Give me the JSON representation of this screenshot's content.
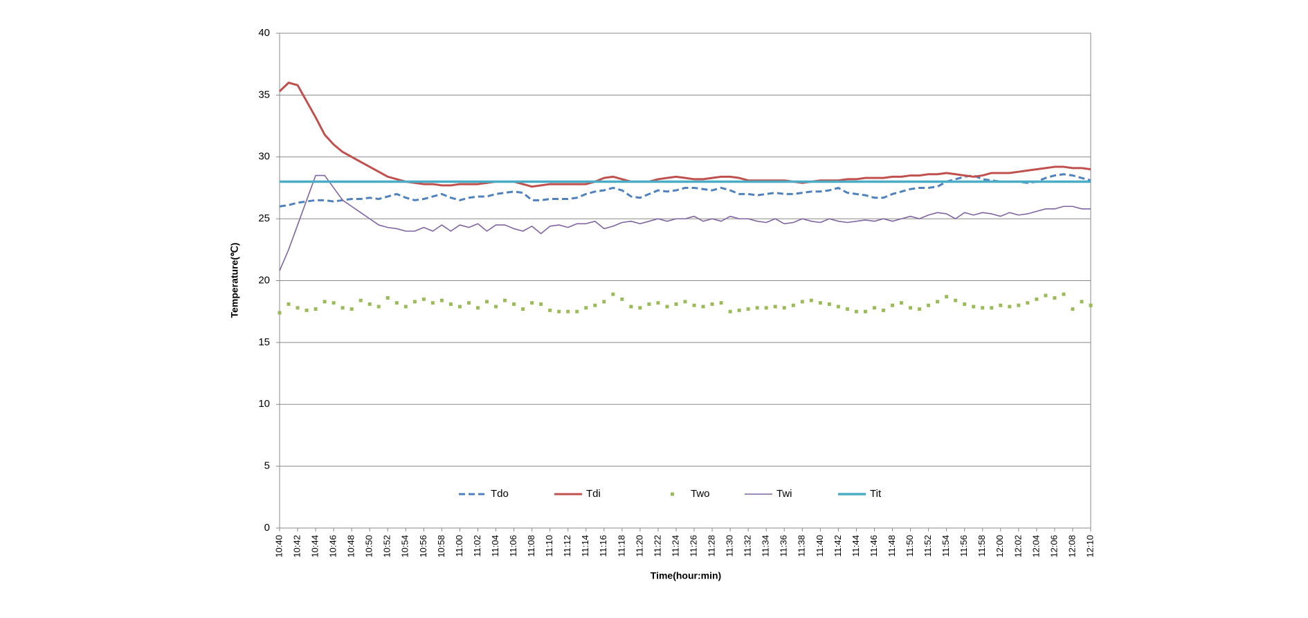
{
  "chart_data": {
    "type": "line",
    "xlabel": "Time(hour:min)",
    "ylabel": "Temperature(℃)",
    "categories": [
      "10:40",
      null,
      "10:42",
      null,
      "10:44",
      null,
      "10:46",
      null,
      "10:48",
      null,
      "10:50",
      null,
      "10:52",
      null,
      "10:54",
      null,
      "10:56",
      null,
      "10:58",
      null,
      "11:00",
      null,
      "11:02",
      null,
      "11:04",
      null,
      "11:06",
      null,
      "11:08",
      null,
      "11:10",
      null,
      "11:12",
      null,
      "11:14",
      null,
      "11:16",
      null,
      "11:18",
      null,
      "11:20",
      null,
      "11:22",
      null,
      "11:24",
      null,
      "11:26",
      null,
      "11:28",
      null,
      "11:30",
      null,
      "11:32",
      null,
      "11:34",
      null,
      "11:36",
      null,
      "11:38",
      null,
      "11:40",
      null,
      "11:42",
      null,
      "11:44",
      null,
      "11:46",
      null,
      "11:48",
      null,
      "11:50",
      null,
      "11:52",
      null,
      "11:54",
      null,
      "11:56",
      null,
      "11:58",
      null,
      "12:00",
      null,
      "12:02",
      null,
      "12:04",
      null,
      "12:06",
      null,
      "12:08",
      null,
      "12:10"
    ],
    "ylim": [
      0,
      40
    ],
    "yticks": [
      0,
      5,
      10,
      15,
      20,
      25,
      30,
      35,
      40
    ],
    "grid": true,
    "legend": "bottom",
    "series": [
      {
        "name": "Tdo",
        "color": "#4f81bd",
        "style": "dash",
        "values": [
          26,
          26.1,
          26.3,
          26.4,
          26.5,
          26.5,
          26.4,
          26.5,
          26.6,
          26.6,
          26.7,
          26.6,
          26.8,
          27,
          26.7,
          26.5,
          26.6,
          26.8,
          27,
          26.7,
          26.5,
          26.7,
          26.8,
          26.8,
          27,
          27.1,
          27.2,
          27.1,
          26.5,
          26.5,
          26.6,
          26.6,
          26.6,
          26.7,
          27,
          27.2,
          27.3,
          27.5,
          27.3,
          26.8,
          26.7,
          27,
          27.3,
          27.2,
          27.3,
          27.5,
          27.5,
          27.4,
          27.3,
          27.5,
          27.3,
          27,
          27,
          26.9,
          27,
          27.1,
          27,
          27,
          27.1,
          27.2,
          27.2,
          27.3,
          27.5,
          27.1,
          27,
          26.9,
          26.7,
          26.7,
          27,
          27.2,
          27.4,
          27.5,
          27.5,
          27.6,
          28,
          28.2,
          28.4,
          28.5,
          28.2,
          28.1,
          28,
          28,
          28,
          27.9,
          28,
          28.3,
          28.5,
          28.6,
          28.5,
          28.3,
          28.1
        ]
      },
      {
        "name": "Tdi",
        "color": "#c0504d",
        "style": "line",
        "values": [
          35.3,
          36,
          35.8,
          34.5,
          33.2,
          31.8,
          31,
          30.4,
          30,
          29.6,
          29.2,
          28.8,
          28.4,
          28.2,
          28,
          27.9,
          27.8,
          27.8,
          27.7,
          27.7,
          27.8,
          27.8,
          27.8,
          27.9,
          28,
          28,
          28,
          27.8,
          27.6,
          27.7,
          27.8,
          27.8,
          27.8,
          27.8,
          27.8,
          28,
          28.3,
          28.4,
          28.2,
          28,
          28,
          28,
          28.2,
          28.3,
          28.4,
          28.3,
          28.2,
          28.2,
          28.3,
          28.4,
          28.4,
          28.3,
          28.1,
          28.1,
          28.1,
          28.1,
          28.1,
          28,
          27.9,
          28,
          28.1,
          28.1,
          28.1,
          28.2,
          28.2,
          28.3,
          28.3,
          28.3,
          28.4,
          28.4,
          28.5,
          28.5,
          28.6,
          28.6,
          28.7,
          28.6,
          28.5,
          28.4,
          28.5,
          28.7,
          28.7,
          28.7,
          28.8,
          28.9,
          29,
          29.1,
          29.2,
          29.2,
          29.1,
          29.1,
          29
        ]
      },
      {
        "name": "Two",
        "color": "#9bbb59",
        "style": "marker",
        "values": [
          17.4,
          18.1,
          17.8,
          17.6,
          17.7,
          18.3,
          18.2,
          17.8,
          17.7,
          18.4,
          18.1,
          17.9,
          18.6,
          18.2,
          17.9,
          18.3,
          18.5,
          18.2,
          18.4,
          18.1,
          17.9,
          18.2,
          17.8,
          18.3,
          17.9,
          18.4,
          18.1,
          17.7,
          18.2,
          18.1,
          17.6,
          17.5,
          17.5,
          17.5,
          17.8,
          18,
          18.3,
          18.9,
          18.5,
          17.9,
          17.8,
          18.1,
          18.2,
          17.9,
          18.1,
          18.3,
          18,
          17.9,
          18.1,
          18.2,
          17.5,
          17.6,
          17.7,
          17.8,
          17.8,
          17.9,
          17.8,
          18,
          18.3,
          18.4,
          18.2,
          18.1,
          17.9,
          17.7,
          17.5,
          17.5,
          17.8,
          17.6,
          18,
          18.2,
          17.8,
          17.7,
          18,
          18.3,
          18.7,
          18.4,
          18.1,
          17.9,
          17.8,
          17.8,
          18,
          17.9,
          18,
          18.2,
          18.5,
          18.8,
          18.6,
          18.9,
          17.7,
          18.3,
          18
        ]
      },
      {
        "name": "Twi",
        "color": "#8064a2",
        "style": "thin",
        "values": [
          20.8,
          22.5,
          24.5,
          26.5,
          28.5,
          28.5,
          27.5,
          26.5,
          26,
          25.5,
          25,
          24.5,
          24.3,
          24.2,
          24,
          24,
          24.3,
          24,
          24.5,
          24,
          24.5,
          24.3,
          24.6,
          24,
          24.5,
          24.5,
          24.2,
          24,
          24.4,
          23.8,
          24.4,
          24.5,
          24.3,
          24.6,
          24.6,
          24.8,
          24.2,
          24.4,
          24.7,
          24.8,
          24.6,
          24.8,
          25,
          24.8,
          25,
          25,
          25.2,
          24.8,
          25,
          24.8,
          25.2,
          25,
          25,
          24.8,
          24.7,
          25,
          24.6,
          24.7,
          25,
          24.8,
          24.7,
          25,
          24.8,
          24.7,
          24.8,
          24.9,
          24.8,
          25,
          24.8,
          25,
          25.2,
          25,
          25.3,
          25.5,
          25.4,
          25,
          25.5,
          25.3,
          25.5,
          25.4,
          25.2,
          25.5,
          25.3,
          25.4,
          25.6,
          25.8,
          25.8,
          26,
          26,
          25.8,
          25.8
        ]
      },
      {
        "name": "Tit",
        "color": "#4bacc6",
        "style": "thick",
        "values": [
          28,
          28,
          28,
          28,
          28,
          28,
          28,
          28,
          28,
          28,
          28,
          28,
          28,
          28,
          28,
          28,
          28,
          28,
          28,
          28,
          28,
          28,
          28,
          28,
          28,
          28,
          28,
          28,
          28,
          28,
          28,
          28,
          28,
          28,
          28,
          28,
          28,
          28,
          28,
          28,
          28,
          28,
          28,
          28,
          28,
          28,
          28,
          28,
          28,
          28,
          28,
          28,
          28,
          28,
          28,
          28,
          28,
          28,
          28,
          28,
          28,
          28,
          28,
          28,
          28,
          28,
          28,
          28,
          28,
          28,
          28,
          28,
          28,
          28,
          28,
          28,
          28,
          28,
          28,
          28,
          28,
          28,
          28,
          28,
          28,
          28,
          28,
          28,
          28,
          28,
          28
        ]
      }
    ]
  }
}
